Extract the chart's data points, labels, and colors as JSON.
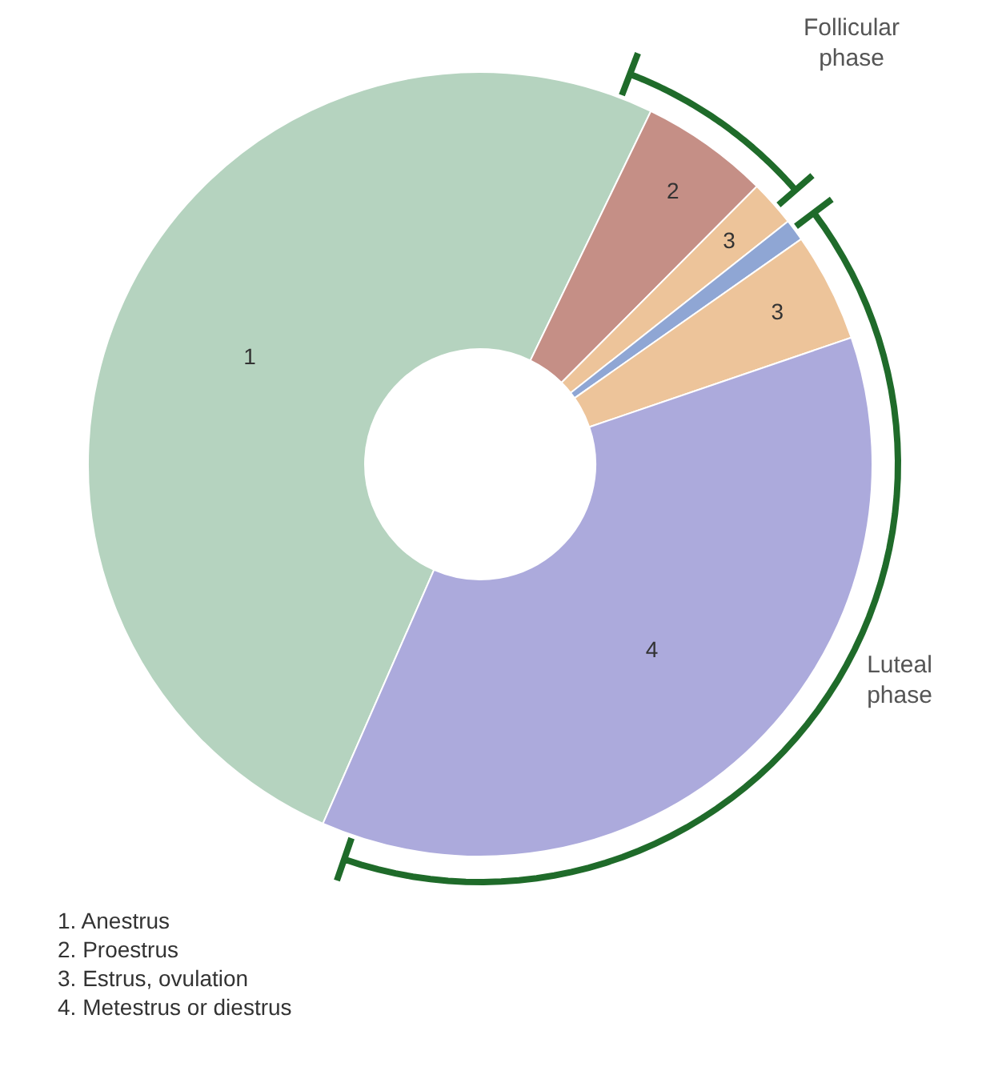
{
  "chart_data": {
    "type": "donut",
    "categories": [
      "1",
      "2",
      "3",
      null,
      "3",
      "4"
    ],
    "values": [
      50.6,
      5.3,
      1.9,
      0.9,
      4.5,
      36.8
    ],
    "colors": [
      "#b5d3bf",
      "#c58f86",
      "#edc49a",
      "#8fa6d4",
      "#edc49a",
      "#acaadc"
    ],
    "annotations": [
      "Follicular phase",
      "Luteal phase",
      "1. Anestrus",
      "2. Proestrus",
      "3. Estrus, ovulation",
      "4. Metestrus or diestrus"
    ]
  }
}
